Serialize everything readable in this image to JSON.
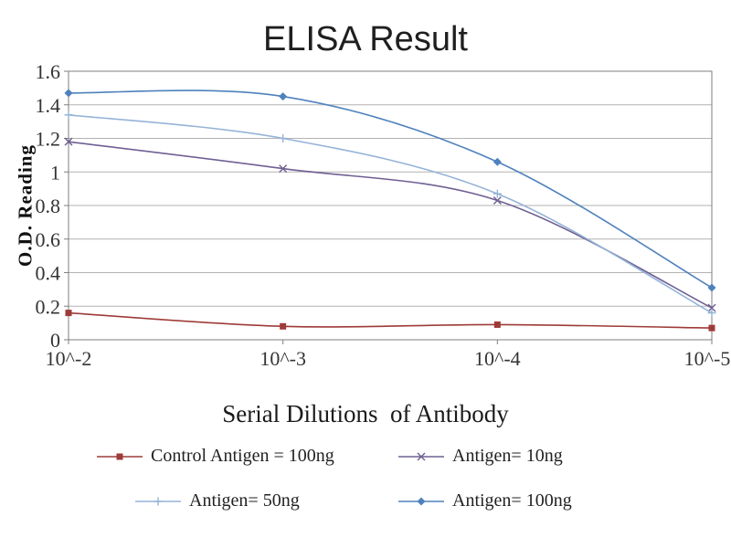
{
  "chart_data": {
    "type": "line",
    "title": "ELISA Result",
    "xlabel": "Serial Dilutions  of Antibody",
    "ylabel": "O.D. Reading",
    "categories": [
      "10^-2",
      "10^-3",
      "10^-4",
      "10^-5"
    ],
    "ylim": [
      0,
      1.6
    ],
    "yticks": [
      "0",
      "0.2",
      "0.4",
      "0.6",
      "0.8",
      "1",
      "1.2",
      "1.4",
      "1.6"
    ],
    "grid": true,
    "legend_position": "bottom",
    "grid_color": "#b3b3b3",
    "axis_color": "#7f7f7f",
    "tick_text_color": "#333333",
    "series": [
      {
        "name": "Control Antigen = 100ng",
        "marker": "square",
        "color": "#9e3b38",
        "values": [
          0.16,
          0.08,
          0.09,
          0.07
        ]
      },
      {
        "name": "Antigen= 10ng",
        "marker": "x",
        "color": "#6f6093",
        "values": [
          1.18,
          1.02,
          0.83,
          0.19
        ]
      },
      {
        "name": "Antigen= 50ng",
        "marker": "plus",
        "color": "#95b3d7",
        "values": [
          1.34,
          1.2,
          0.87,
          0.16
        ]
      },
      {
        "name": "Antigen= 100ng",
        "marker": "diamond",
        "color": "#4f81bd",
        "values": [
          1.47,
          1.45,
          1.06,
          0.31
        ]
      }
    ]
  }
}
